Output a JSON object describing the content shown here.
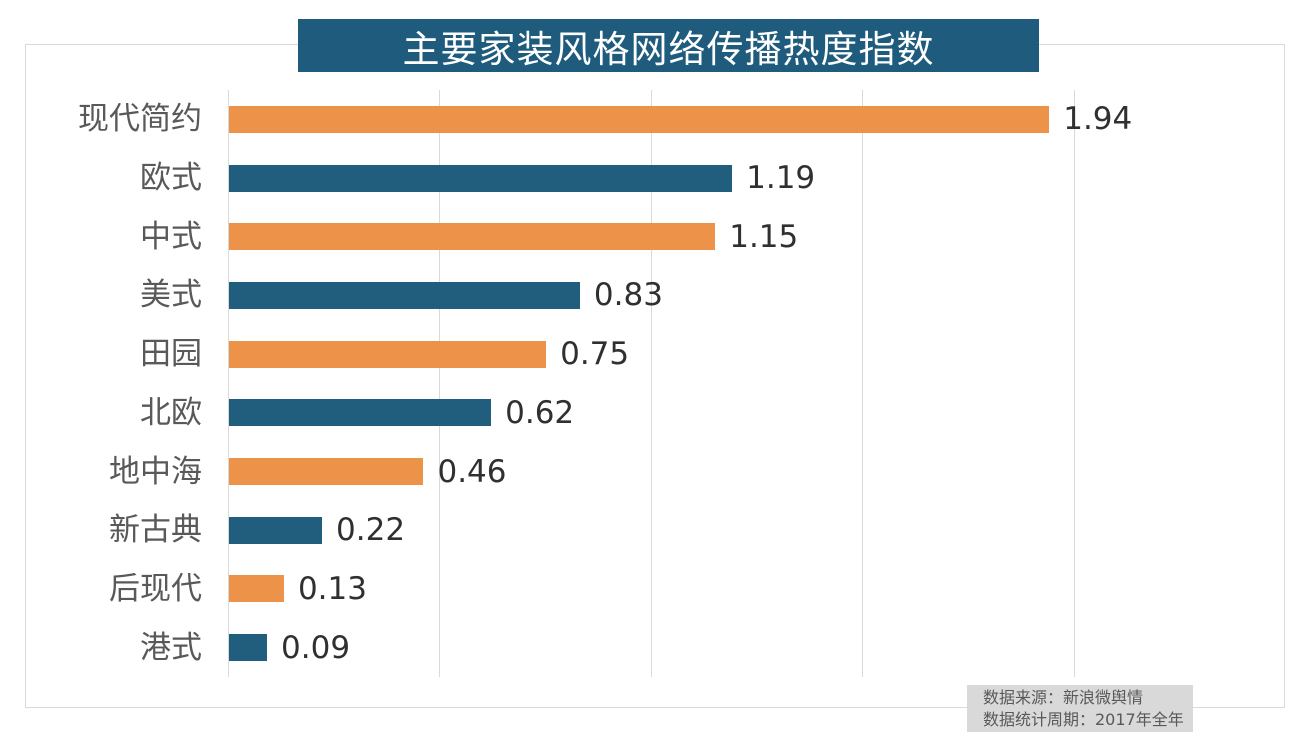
{
  "title": "主要家装风格网络传播热度指数",
  "source_note": {
    "line1": "数据来源：新浪微舆情",
    "line2": "数据统计周期：2017年全年"
  },
  "colors": {
    "banner_bg": "#1E5B7D",
    "bar_orange": "#ED9249",
    "bar_blue": "#215E7E",
    "gridline": "#D9D9D9",
    "category_label": "#595959",
    "value_label": "#303030",
    "source_box_bg": "#D9D9D9"
  },
  "chart_data": {
    "type": "bar",
    "orientation": "horizontal",
    "title": "主要家装风格网络传播热度指数",
    "categories": [
      "现代简约",
      "欧式",
      "中式",
      "美式",
      "田园",
      "北欧",
      "地中海",
      "新古典",
      "后现代",
      "港式"
    ],
    "values": [
      1.94,
      1.19,
      1.15,
      0.83,
      0.75,
      0.62,
      0.46,
      0.22,
      0.13,
      0.09
    ],
    "value_labels": [
      "1.94",
      "1.19",
      "1.15",
      "0.83",
      "0.75",
      "0.62",
      "0.46",
      "0.22",
      "0.13",
      "0.09"
    ],
    "xlim": [
      0,
      2.5
    ],
    "gridline_interval": 0.5,
    "grid": true,
    "legend": "none",
    "bar_color_pattern": [
      "#ED9249",
      "#215E7E"
    ],
    "xlabel": "",
    "ylabel": ""
  }
}
